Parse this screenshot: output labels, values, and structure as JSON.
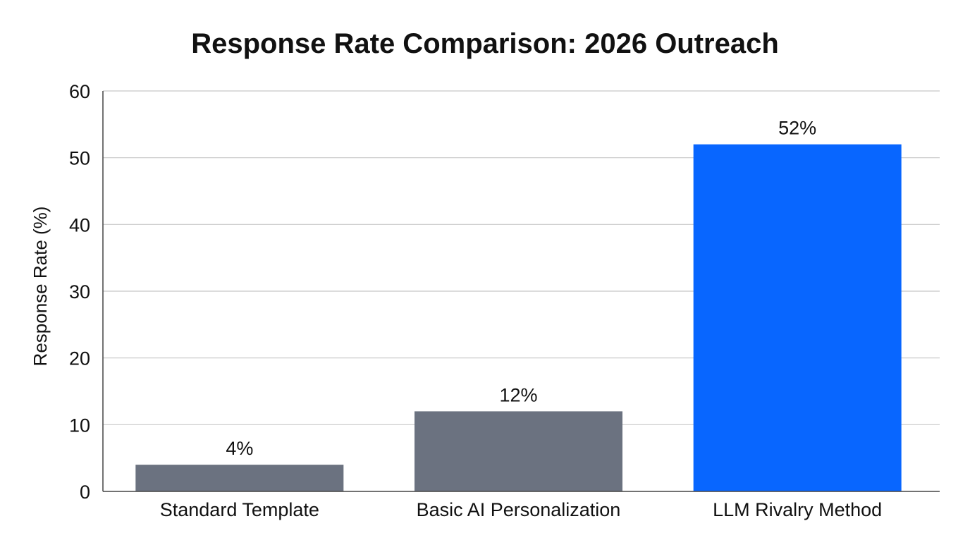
{
  "chart_data": {
    "type": "bar",
    "title": "Response Rate Comparison: 2026 Outreach",
    "xlabel": "",
    "ylabel": "Response Rate (%)",
    "ylim": [
      0,
      60
    ],
    "yticks": [
      0,
      10,
      20,
      30,
      40,
      50,
      60
    ],
    "grid": true,
    "categories": [
      "Standard Template",
      "Basic AI Personalization",
      "LLM Rivalry Method"
    ],
    "values": [
      4,
      12,
      52
    ],
    "data_labels": [
      "4%",
      "12%",
      "52%"
    ],
    "colors": [
      "#6b7280",
      "#6b7280",
      "#0866ff"
    ]
  }
}
